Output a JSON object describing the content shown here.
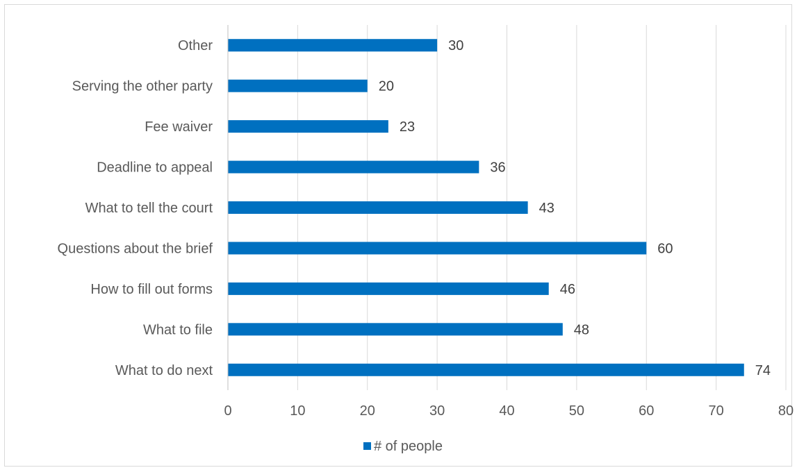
{
  "chart_data": {
    "type": "bar",
    "orientation": "horizontal",
    "categories": [
      "What to do next",
      "What to file",
      "How to fill out forms",
      "Questions about the brief",
      "What to tell the court",
      "Deadline to appeal",
      "Fee waiver",
      "Serving the other party",
      "Other"
    ],
    "series": [
      {
        "name": "# of people",
        "color": "#0070c0",
        "values": [
          74,
          48,
          46,
          60,
          43,
          36,
          23,
          20,
          30
        ]
      }
    ],
    "xlim": [
      0,
      80
    ],
    "xticks": [
      0,
      10,
      20,
      30,
      40,
      50,
      60,
      70,
      80
    ],
    "grid": "vertical",
    "data_labels": true,
    "legend_position": "bottom"
  }
}
